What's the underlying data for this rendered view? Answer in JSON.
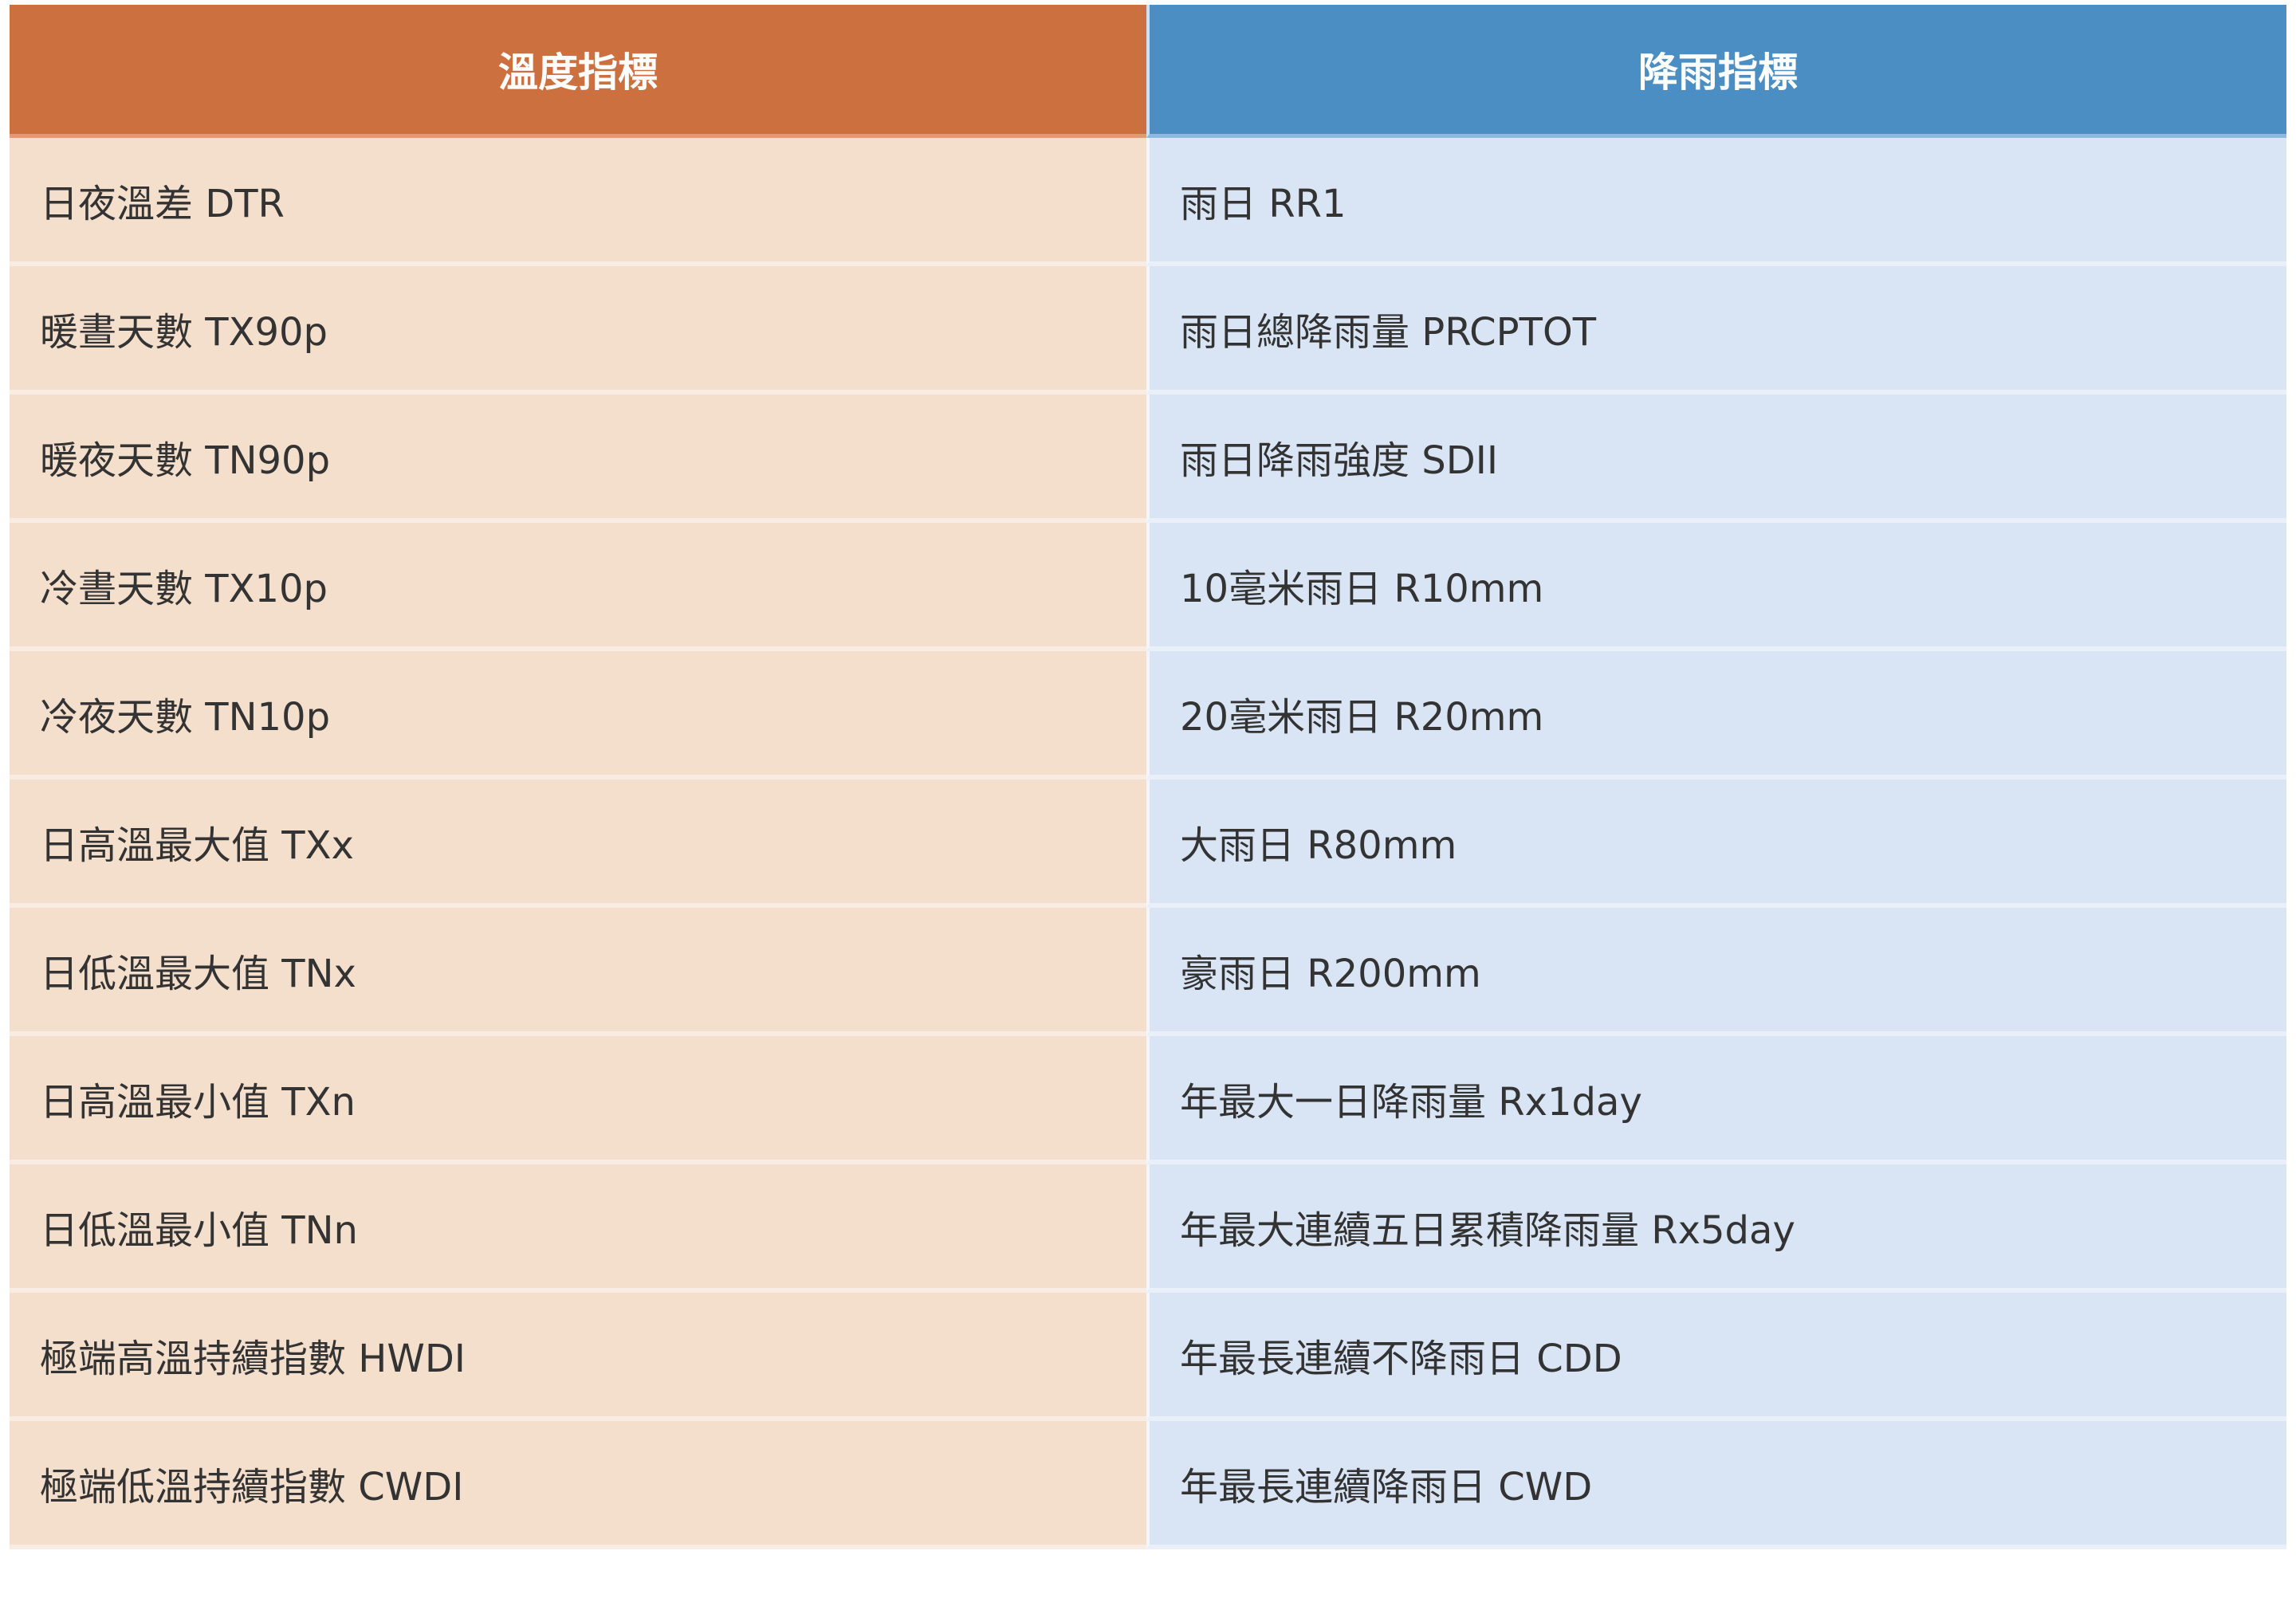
{
  "table": {
    "headers": {
      "temperature": "溫度指標",
      "rainfall": "降雨指標"
    },
    "rows": [
      {
        "temperature": "日夜溫差 DTR",
        "rainfall": "雨日 RR1"
      },
      {
        "temperature": "暖晝天數 TX90p",
        "rainfall": "雨日總降雨量 PRCPTOT"
      },
      {
        "temperature": "暖夜天數 TN90p",
        "rainfall": "雨日降雨強度 SDII"
      },
      {
        "temperature": "冷晝天數 TX10p",
        "rainfall": "10毫米雨日 R10mm"
      },
      {
        "temperature": "冷夜天數 TN10p",
        "rainfall": "20毫米雨日 R20mm"
      },
      {
        "temperature": "日高溫最大值 TXx",
        "rainfall": "大雨日 R80mm"
      },
      {
        "temperature": "日低溫最大值 TNx",
        "rainfall": "豪雨日 R200mm"
      },
      {
        "temperature": "日高溫最小值 TXn",
        "rainfall": "年最大一日降雨量 Rx1day"
      },
      {
        "temperature": "日低溫最小值 TNn",
        "rainfall": "年最大連續五日累積降雨量 Rx5day"
      },
      {
        "temperature": "極端高溫持續指數 HWDI",
        "rainfall": "年最長連續不降雨日 CDD"
      },
      {
        "temperature": "極端低溫持續指數 CWDI",
        "rainfall": "年最長連續降雨日 CWD"
      }
    ]
  },
  "colors": {
    "temperature_header": "#CD7040",
    "rainfall_header": "#4A8EC4",
    "temperature_cell": "#F4DFCC",
    "rainfall_cell": "#D9E5F4"
  }
}
